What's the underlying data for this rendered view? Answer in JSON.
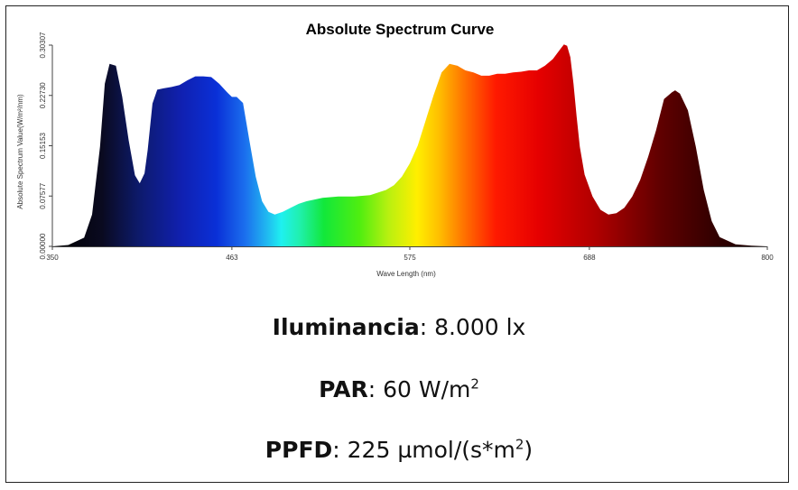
{
  "chart_data": {
    "type": "area",
    "title": "Absolute Spectrum Curve",
    "xlabel": "Wave Length (nm)",
    "ylabel": "Absolute Spectrum Value(W/m²/nm)",
    "xlim": [
      350,
      800
    ],
    "ylim": [
      0,
      0.30307
    ],
    "x_ticks": [
      "350",
      "463",
      "575",
      "688",
      "800"
    ],
    "y_ticks": [
      "0.00000",
      "0.07577",
      "0.15153",
      "0.22730",
      "0.30307"
    ],
    "grid": false,
    "series": [
      {
        "x": [
          350,
          360,
          370,
          375,
          380,
          383,
          386,
          390,
          394,
          398,
          402,
          405,
          408,
          410,
          413,
          416,
          420,
          425,
          430,
          435,
          440,
          445,
          450,
          455,
          460,
          463,
          466,
          470,
          474,
          478,
          482,
          486,
          490,
          495,
          500,
          505,
          510,
          520,
          530,
          540,
          550,
          560,
          565,
          570,
          575,
          580,
          585,
          590,
          595,
          600,
          605,
          610,
          615,
          620,
          625,
          630,
          635,
          640,
          645,
          650,
          655,
          660,
          665,
          670,
          672,
          674,
          676,
          678,
          680,
          682,
          685,
          690,
          695,
          700,
          705,
          710,
          715,
          720,
          725,
          730,
          735,
          740,
          742,
          745,
          750,
          755,
          760,
          765,
          770,
          780,
          790,
          800
        ],
        "values": [
          0.0,
          0.002,
          0.013,
          0.048,
          0.15,
          0.245,
          0.275,
          0.272,
          0.225,
          0.16,
          0.107,
          0.095,
          0.11,
          0.145,
          0.215,
          0.236,
          0.238,
          0.24,
          0.243,
          0.25,
          0.256,
          0.256,
          0.255,
          0.245,
          0.232,
          0.225,
          0.225,
          0.216,
          0.16,
          0.105,
          0.068,
          0.052,
          0.048,
          0.052,
          0.058,
          0.064,
          0.068,
          0.073,
          0.075,
          0.075,
          0.077,
          0.085,
          0.092,
          0.105,
          0.125,
          0.152,
          0.19,
          0.228,
          0.262,
          0.275,
          0.272,
          0.265,
          0.262,
          0.257,
          0.257,
          0.26,
          0.26,
          0.262,
          0.263,
          0.265,
          0.265,
          0.272,
          0.282,
          0.298,
          0.304,
          0.302,
          0.285,
          0.245,
          0.195,
          0.15,
          0.108,
          0.075,
          0.055,
          0.048,
          0.05,
          0.058,
          0.075,
          0.1,
          0.135,
          0.175,
          0.222,
          0.232,
          0.235,
          0.23,
          0.205,
          0.15,
          0.085,
          0.038,
          0.014,
          0.003,
          0.001,
          0.0
        ]
      }
    ]
  },
  "metrics": {
    "illuminance": {
      "label": "Iluminancia",
      "value": "8.000 lx"
    },
    "par": {
      "label": "PAR",
      "value": "60 W/m",
      "sup": "2"
    },
    "ppfd": {
      "label": "PPFD",
      "value": "225 µmol/(s*m",
      "sup": "2",
      "suffix": ")"
    }
  }
}
